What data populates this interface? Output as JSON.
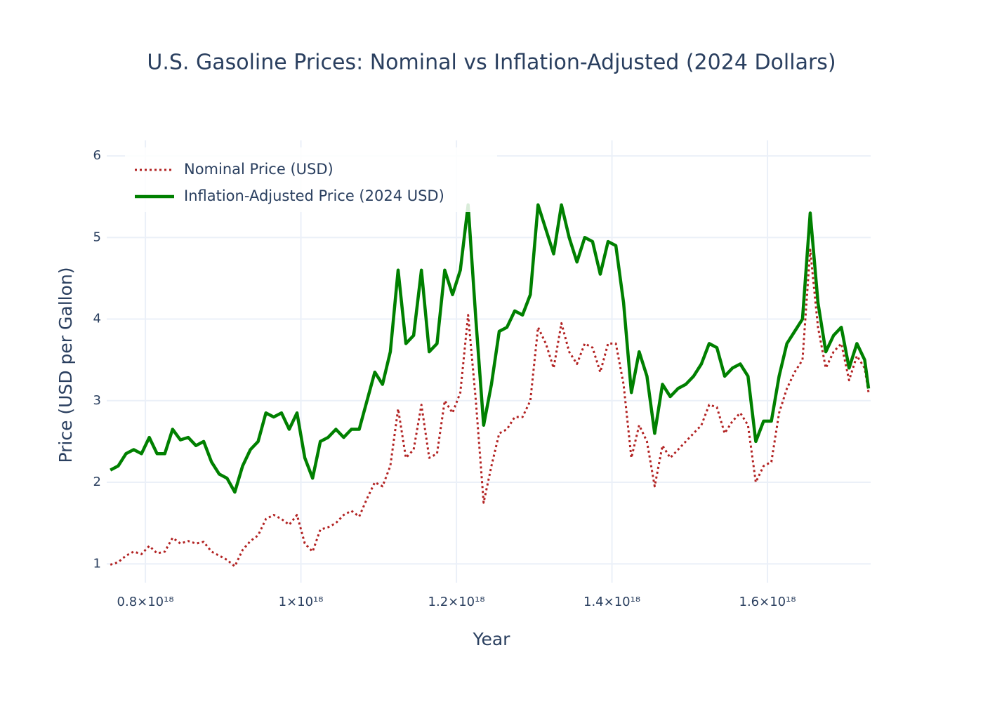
{
  "chart_data": {
    "type": "line",
    "title": "U.S. Gasoline Prices: Nominal vs Inflation-Adjusted (2024 Dollars)",
    "x_label": "Year",
    "y_label": "Price (USD per Gallon)",
    "x": [
      7.55e+17,
      7.65e+17,
      7.75e+17,
      7.85e+17,
      7.95e+17,
      8.05e+17,
      8.15e+17,
      8.25e+17,
      8.35e+17,
      8.45e+17,
      8.55e+17,
      8.65e+17,
      8.75e+17,
      8.85e+17,
      8.95e+17,
      9.05e+17,
      9.15e+17,
      9.25e+17,
      9.35e+17,
      9.45e+17,
      9.55e+17,
      9.65e+17,
      9.75e+17,
      9.85e+17,
      9.95e+17,
      1.005e+18,
      1.015e+18,
      1.025e+18,
      1.035e+18,
      1.045e+18,
      1.055e+18,
      1.065e+18,
      1.075e+18,
      1.085e+18,
      1.095e+18,
      1.105e+18,
      1.115e+18,
      1.125e+18,
      1.135e+18,
      1.145e+18,
      1.155e+18,
      1.165e+18,
      1.175e+18,
      1.185e+18,
      1.195e+18,
      1.205e+18,
      1.215e+18,
      1.225e+18,
      1.235e+18,
      1.245e+18,
      1.255e+18,
      1.265e+18,
      1.275e+18,
      1.285e+18,
      1.295e+18,
      1.305e+18,
      1.315e+18,
      1.325e+18,
      1.335e+18,
      1.345e+18,
      1.355e+18,
      1.365e+18,
      1.375e+18,
      1.385e+18,
      1.395e+18,
      1.405e+18,
      1.415e+18,
      1.425e+18,
      1.435e+18,
      1.445e+18,
      1.455e+18,
      1.465e+18,
      1.475e+18,
      1.485e+18,
      1.495e+18,
      1.505e+18,
      1.515e+18,
      1.525e+18,
      1.535e+18,
      1.545e+18,
      1.555e+18,
      1.565e+18,
      1.575e+18,
      1.585e+18,
      1.595e+18,
      1.605e+18,
      1.615e+18,
      1.625e+18,
      1.635e+18,
      1.645e+18,
      1.655e+18,
      1.665e+18,
      1.675e+18,
      1.685e+18,
      1.695e+18,
      1.705e+18,
      1.715e+18,
      1.725e+18,
      1.73e+18
    ],
    "series": [
      {
        "name": "Nominal Price (USD)",
        "color": "#b22222",
        "dash": "dot",
        "values": [
          0.99,
          1.02,
          1.1,
          1.15,
          1.12,
          1.22,
          1.13,
          1.15,
          1.32,
          1.25,
          1.28,
          1.25,
          1.27,
          1.15,
          1.1,
          1.05,
          0.97,
          1.17,
          1.28,
          1.35,
          1.55,
          1.6,
          1.55,
          1.48,
          1.6,
          1.25,
          1.15,
          1.42,
          1.45,
          1.5,
          1.6,
          1.65,
          1.58,
          1.8,
          2.0,
          1.95,
          2.2,
          2.9,
          2.3,
          2.4,
          2.95,
          2.3,
          2.35,
          3.0,
          2.85,
          3.1,
          4.05,
          3.0,
          1.75,
          2.2,
          2.6,
          2.65,
          2.8,
          2.8,
          3.0,
          3.9,
          3.7,
          3.4,
          3.95,
          3.6,
          3.45,
          3.7,
          3.65,
          3.35,
          3.7,
          3.7,
          3.2,
          2.3,
          2.7,
          2.5,
          1.95,
          2.45,
          2.3,
          2.4,
          2.5,
          2.6,
          2.7,
          2.95,
          2.92,
          2.6,
          2.75,
          2.85,
          2.7,
          2.0,
          2.2,
          2.25,
          2.85,
          3.15,
          3.35,
          3.5,
          4.85,
          3.9,
          3.4,
          3.6,
          3.7,
          3.25,
          3.55,
          3.4,
          3.1
        ]
      },
      {
        "name": "Inflation-Adjusted Price (2024 USD)",
        "color": "#008000",
        "dash": "solid",
        "values": [
          2.15,
          2.2,
          2.35,
          2.4,
          2.35,
          2.55,
          2.35,
          2.35,
          2.65,
          2.52,
          2.55,
          2.45,
          2.5,
          2.25,
          2.1,
          2.05,
          1.88,
          2.2,
          2.4,
          2.5,
          2.85,
          2.8,
          2.85,
          2.65,
          2.85,
          2.3,
          2.05,
          2.5,
          2.55,
          2.65,
          2.55,
          2.65,
          2.65,
          3.0,
          3.35,
          3.2,
          3.6,
          4.6,
          3.7,
          3.8,
          4.6,
          3.6,
          3.7,
          4.6,
          4.3,
          4.6,
          5.4,
          4.0,
          2.7,
          3.2,
          3.85,
          3.9,
          4.1,
          4.05,
          4.3,
          5.4,
          5.1,
          4.8,
          5.4,
          5.0,
          4.7,
          5.0,
          4.95,
          4.55,
          4.95,
          4.9,
          4.2,
          3.1,
          3.6,
          3.3,
          2.6,
          3.2,
          3.05,
          3.15,
          3.2,
          3.3,
          3.45,
          3.7,
          3.65,
          3.3,
          3.4,
          3.45,
          3.3,
          2.5,
          2.75,
          2.75,
          3.3,
          3.7,
          3.85,
          4.0,
          5.3,
          4.2,
          3.6,
          3.8,
          3.9,
          3.4,
          3.7,
          3.5,
          3.15
        ]
      }
    ],
    "xlim": [
      7.503e+17,
      1.7327e+18
    ],
    "ylim": [
      0.77,
      6.19
    ],
    "xticks": [
      {
        "value": 8e+17,
        "label": "0.8×10¹⁸"
      },
      {
        "value": 1e+18,
        "label": "1×10¹⁸"
      },
      {
        "value": 1.2e+18,
        "label": "1.2×10¹⁸"
      },
      {
        "value": 1.4e+18,
        "label": "1.4×10¹⁸"
      },
      {
        "value": 1.6e+18,
        "label": "1.6×10¹⁸"
      }
    ],
    "yticks": [
      1,
      2,
      3,
      4,
      5,
      6
    ],
    "grid": true,
    "legend": "top-left"
  }
}
